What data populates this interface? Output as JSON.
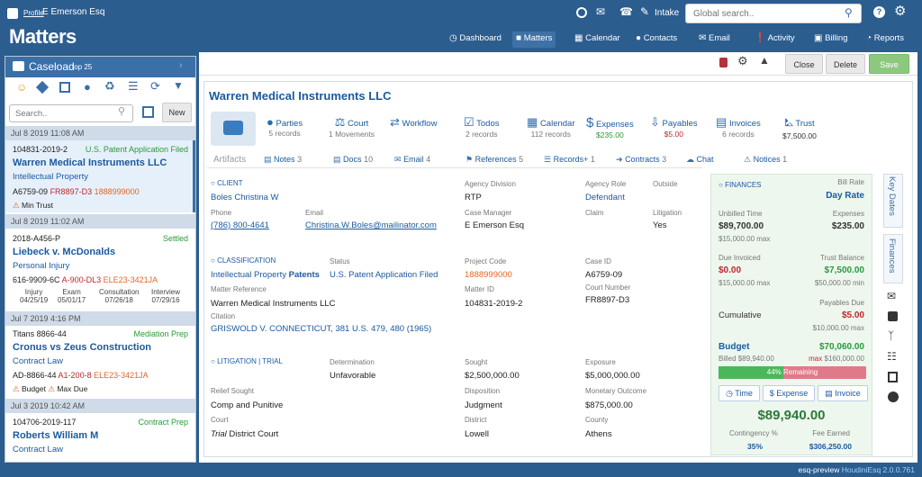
{
  "header": {
    "profile_link": "Profile",
    "user_name": "E Emerson Esq",
    "intake": "Intake",
    "search_placeholder": "Global search.."
  },
  "app_title": "Matters",
  "nav": [
    {
      "label": "Dashboard",
      "icon": "dashboard-icon"
    },
    {
      "label": "Matters",
      "icon": "briefcase-icon"
    },
    {
      "label": "Calendar",
      "icon": "calendar-icon"
    },
    {
      "label": "Contacts",
      "icon": "contacts-icon"
    },
    {
      "label": "Email",
      "icon": "email-icon"
    },
    {
      "label": "Activity",
      "icon": "activity-icon"
    },
    {
      "label": "Billing",
      "icon": "billing-icon"
    },
    {
      "label": "Reports",
      "icon": "reports-icon"
    }
  ],
  "caseload": {
    "title": "Caseload",
    "sub": "top 25",
    "search_placeholder": "Search..",
    "new_label": "New",
    "items": [
      {
        "date": "Jul 8 2019 11:08 AM",
        "number": "104831-2019-2",
        "status": "U.S. Patent Application Filed",
        "name": "Warren Medical Instruments LLC",
        "type": "Intellectual Property",
        "c1": "A6759-09",
        "c2": "FR8897-D3",
        "c3": "1888999000",
        "warn1": "Min Trust"
      },
      {
        "date": "Jul 8 2019 11:02 AM",
        "number": "2018-A456-P",
        "status": "Settled",
        "name": "Liebeck v. McDonalds",
        "type": "Personal Injury",
        "c1": "616-9909-6C",
        "c2": "A-900-DL3",
        "c3": "ELE23-3421JA",
        "dates": [
          {
            "l": "Injury",
            "v": "04/25/19"
          },
          {
            "l": "Exam",
            "v": "05/01/17"
          },
          {
            "l": "Consultation",
            "v": "07/26/18"
          },
          {
            "l": "Interview",
            "v": "07/29/16"
          }
        ]
      },
      {
        "date": "Jul 7 2019 4:16 PM",
        "number": "Titans 8866-44",
        "status": "Mediation Prep",
        "name": "Cronus vs Zeus Construction",
        "type": "Contract Law",
        "c1": "AD-8866-44",
        "c2": "A1-200-8",
        "c3": "ELE23-3421JA",
        "warn1": "Budget",
        "warn2": "Max Due"
      },
      {
        "date": "Jul 3 2019 10:42 AM",
        "number": "104706-2019-117",
        "status": "Contract Prep",
        "name": "Roberts William M",
        "type": "Contract Law"
      }
    ]
  },
  "toolbar": {
    "close": "Close",
    "delete": "Delete",
    "save": "Save"
  },
  "matter": {
    "title": "Warren Medical Instruments LLC",
    "tiles": [
      {
        "label": "Parties",
        "sub": "5 records"
      },
      {
        "label": "Court",
        "sub": "1 Movements"
      },
      {
        "label": "Workflow",
        "sub": ""
      },
      {
        "label": "Todos",
        "sub": "2 records"
      },
      {
        "label": "Calendar",
        "sub": "112 records"
      },
      {
        "label": "Expenses",
        "sub": "$235.00"
      },
      {
        "label": "Payables",
        "sub": "$5.00"
      },
      {
        "label": "Invoices",
        "sub": "6 records"
      },
      {
        "label": "Trust",
        "sub": "$7,500.00"
      }
    ],
    "artifacts_label": "Artifacts",
    "artifacts": [
      {
        "label": "Notes",
        "count": "3"
      },
      {
        "label": "Docs",
        "count": "10"
      },
      {
        "label": "Email",
        "count": "4"
      },
      {
        "label": "References",
        "count": "5"
      },
      {
        "label": "Records+",
        "count": "1"
      },
      {
        "label": "Contracts",
        "count": "3"
      },
      {
        "label": "Chat",
        "count": ""
      },
      {
        "label": "Notices",
        "count": "1"
      }
    ],
    "client": {
      "section": "CLIENT",
      "name": "Boles Christina W",
      "phone_label": "Phone",
      "phone": "(786) 800-4641",
      "email_label": "Email",
      "email": "Christina.W.Boles@mailinator.com",
      "agency_division_label": "Agency Division",
      "agency_division": "RTP",
      "case_manager_label": "Case Manager",
      "case_manager": "E Emerson Esq",
      "agency_role_label": "Agency Role",
      "agency_role": "Defendant",
      "outside_label": "Outside",
      "claim_label": "Claim",
      "litigation_label": "Litigation",
      "litigation": "Yes"
    },
    "classification": {
      "section": "CLASSIFICATION",
      "area": "Intellectual Property",
      "sub_area": "Patents",
      "status_label": "Status",
      "status": "U.S. Patent Application Filed",
      "project_code_label": "Project Code",
      "project_code": "1888999000",
      "case_id_label": "Case ID",
      "case_id": "A6759-09",
      "matter_ref_label": "Matter Reference",
      "matter_ref": "Warren Medical Instruments LLC",
      "matter_id_label": "Matter ID",
      "matter_id": "104831-2019-2",
      "court_number_label": "Court Number",
      "court_number": "FR8897-D3",
      "citation_label": "Citation",
      "citation": "GRISWOLD V. CONNECTICUT, 381 U.S. 479, 480 (1965)"
    },
    "litigation": {
      "section": "LITIGATION | TRIAL",
      "determination_label": "Determination",
      "determination": "Unfavorable",
      "sought_label": "Sought",
      "sought": "$2,500,000.00",
      "exposure_label": "Exposure",
      "exposure": "$5,000,000.00",
      "relief_label": "Relief Sought",
      "relief": "Comp and Punitive",
      "disposition_label": "Disposition",
      "disposition": "Judgment",
      "monetary_label": "Monetary Outcome",
      "monetary": "$875,000.00",
      "court_label": "Court",
      "court_italic": "Trial",
      "court_rest": "District Court",
      "district_label": "District",
      "district": "Lowell",
      "county_label": "County",
      "county": "Athens"
    }
  },
  "finances": {
    "section": "FINANCES",
    "bill_rate_label": "Bill Rate",
    "bill_rate": "Day Rate",
    "unbilled_time_label": "Unbilled Time",
    "unbilled_time": "$89,700.00",
    "unbilled_time_max": "$15,000.00 max",
    "expenses_label": "Expenses",
    "expenses": "$235.00",
    "due_invoiced_label": "Due Invoiced",
    "due_invoiced": "$0.00",
    "due_invoiced_max": "$15,000.00 max",
    "trust_balance_label": "Trust Balance",
    "trust_balance": "$7,500.00",
    "trust_balance_min": "$50,000.00 min",
    "payables_due_label": "Payables Due",
    "cumulative_label": "Cumulative",
    "payables_due": "$5.00",
    "payables_due_max": "$10,000.00 max",
    "budget_label": "Budget",
    "budget": "$70,060.00",
    "billed": "Billed $89,940.00",
    "budget_max_word": "max",
    "budget_max": "$160,000.00",
    "remaining_label": "44% Remaining",
    "remaining_fraction": 0.44,
    "time_btn": "Time",
    "expense_btn": "Expense",
    "invoice_btn": "Invoice",
    "total": "$89,940.00",
    "contingency_label": "Contingency %",
    "contingency": "35%",
    "fee_earned_label": "Fee Earned",
    "fee_earned": "$306,250.00"
  },
  "side_tabs": {
    "key_dates": "Key Dates",
    "finances": "Finances"
  },
  "footer": {
    "env": "esq-preview",
    "product": "HoudiniEsq 2.0.0.761"
  },
  "colors": {
    "brand": "#2b5d8f",
    "link": "#1b5aa0",
    "green": "#2a9a3a",
    "red": "#c0262e",
    "orange": "#e2672a",
    "save": "#8cc97e"
  }
}
